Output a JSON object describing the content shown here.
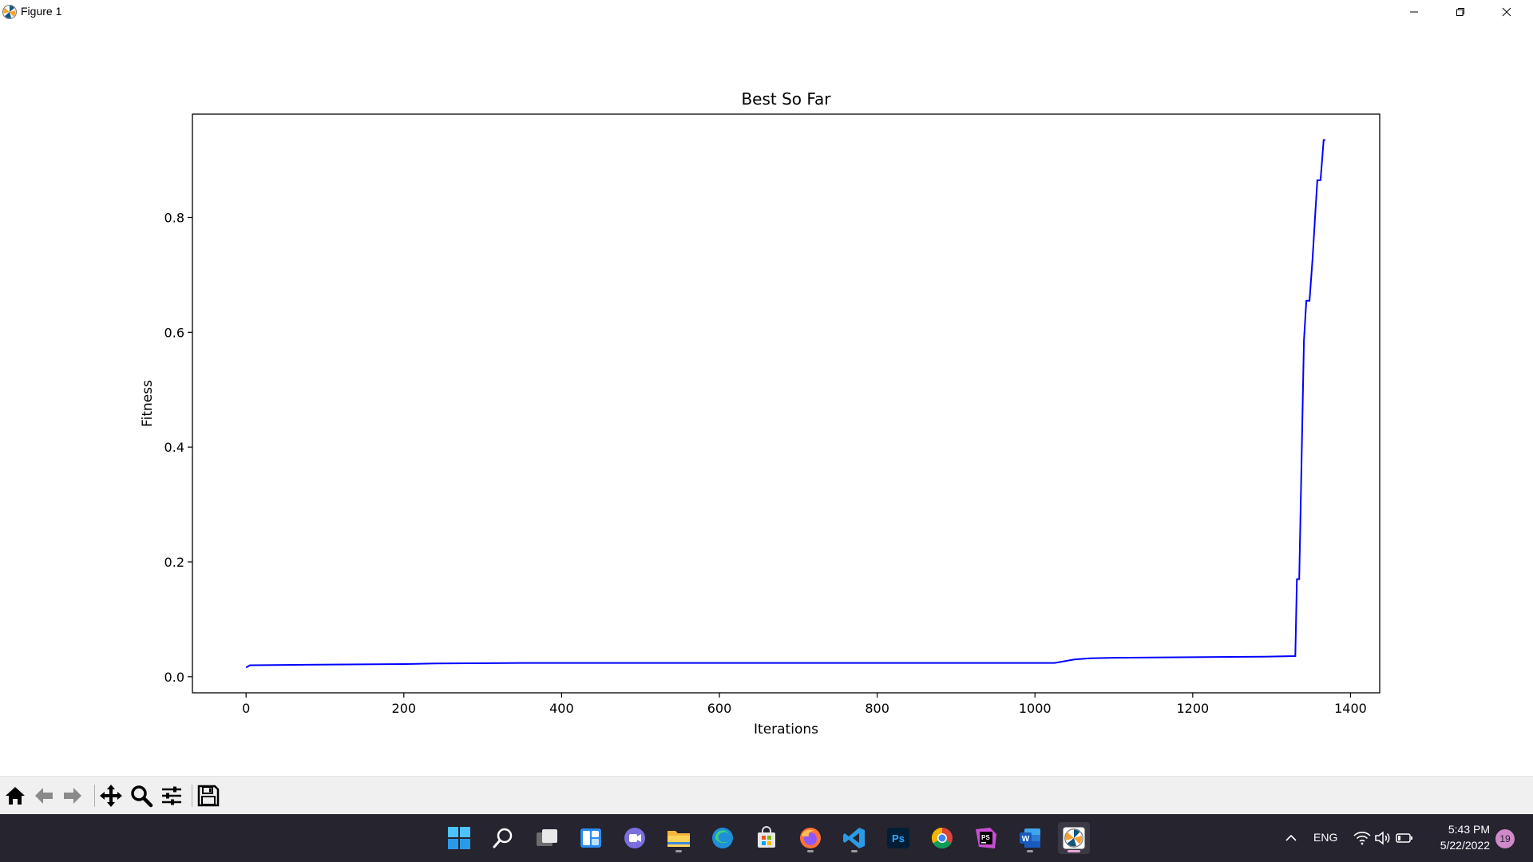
{
  "window": {
    "title": "Figure 1"
  },
  "chart_data": {
    "type": "line",
    "title": "Best So Far",
    "xlabel": "Iterations",
    "ylabel": "Fitness",
    "xlim": [
      -68,
      1437
    ],
    "ylim": [
      -0.028,
      0.98
    ],
    "xticks": [
      0,
      200,
      400,
      600,
      800,
      1000,
      1200,
      1400
    ],
    "yticks": [
      0.0,
      0.2,
      0.4,
      0.6,
      0.8
    ],
    "xtick_labels": [
      "0",
      "200",
      "400",
      "600",
      "800",
      "1000",
      "1200",
      "1400"
    ],
    "ytick_labels": [
      "0.0",
      "0.2",
      "0.4",
      "0.6",
      "0.8"
    ],
    "grid": false,
    "series": [
      {
        "color": "#0000ff",
        "x": [
          0,
          5,
          90,
          200,
          240,
          350,
          1025,
          1050,
          1070,
          1100,
          1290,
          1330,
          1332,
          1335,
          1338,
          1341,
          1344,
          1348,
          1352,
          1355,
          1358,
          1362,
          1366,
          1368
        ],
        "y": [
          0.016,
          0.02,
          0.021,
          0.022,
          0.023,
          0.024,
          0.024,
          0.03,
          0.032,
          0.033,
          0.035,
          0.036,
          0.17,
          0.17,
          0.38,
          0.585,
          0.655,
          0.655,
          0.73,
          0.8,
          0.865,
          0.865,
          0.935,
          0.935
        ]
      }
    ]
  },
  "toolbar": {
    "buttons": [
      {
        "name": "home-button",
        "icon": "home-icon"
      },
      {
        "name": "back-button",
        "icon": "arrow-left-icon"
      },
      {
        "name": "forward-button",
        "icon": "arrow-right-icon"
      },
      {
        "name": "pan-button",
        "icon": "move-icon"
      },
      {
        "name": "zoom-button",
        "icon": "magnifier-icon"
      },
      {
        "name": "configure-subplots-button",
        "icon": "sliders-icon"
      },
      {
        "name": "save-button",
        "icon": "floppy-icon"
      }
    ]
  },
  "taskbar": {
    "language": "ENG",
    "time": "5:43 PM",
    "date": "5/22/2022",
    "notification_count": "19",
    "ps_label": "Ps",
    "pycharm_label": "PS",
    "word_label": "W"
  }
}
